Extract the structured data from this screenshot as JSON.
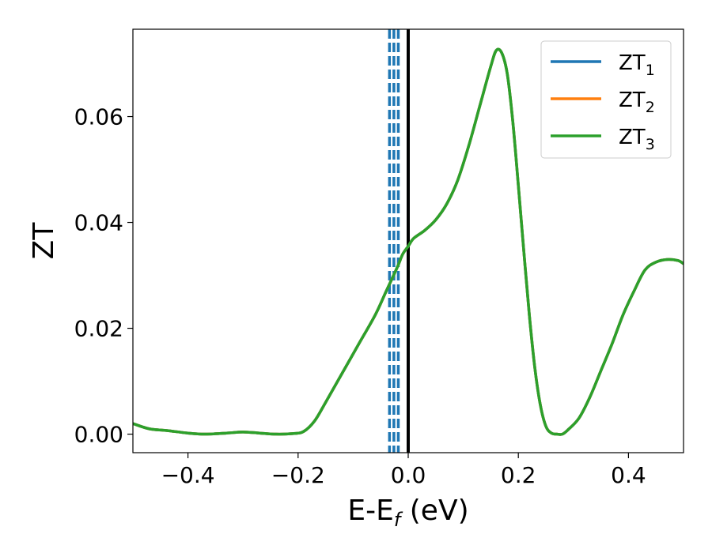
{
  "chart_data": {
    "type": "line",
    "xlabel_main": "E-E",
    "xlabel_sub": "f",
    "xlabel_unit": " (eV)",
    "ylabel": "ZT",
    "xlim": [
      -0.5,
      0.5
    ],
    "ylim": [
      -0.0035,
      0.0765
    ],
    "grid": false,
    "legend_position": "top-right",
    "x_ticks": [
      -0.4,
      -0.2,
      0.0,
      0.2,
      0.4
    ],
    "x_tick_labels": [
      "−0.4",
      "−0.2",
      "0.0",
      "0.2",
      "0.4"
    ],
    "y_ticks": [
      0.0,
      0.02,
      0.04,
      0.06
    ],
    "y_tick_labels": [
      "0.00",
      "0.02",
      "0.04",
      "0.06"
    ],
    "series": [
      {
        "name_main": "ZT",
        "name_sub": "1",
        "color": "#1f77b4"
      },
      {
        "name_main": "ZT",
        "name_sub": "2",
        "color": "#ff7f0e"
      },
      {
        "name_main": "ZT",
        "name_sub": "3",
        "color": "#2ca02c"
      }
    ],
    "curve": {
      "x": [
        -0.5,
        -0.47,
        -0.44,
        -0.4,
        -0.37,
        -0.33,
        -0.3,
        -0.27,
        -0.24,
        -0.21,
        -0.19,
        -0.17,
        -0.15,
        -0.12,
        -0.09,
        -0.06,
        -0.04,
        -0.02,
        -0.01,
        0.0,
        0.01,
        0.03,
        0.05,
        0.07,
        0.09,
        0.11,
        0.13,
        0.15,
        0.16,
        0.17,
        0.18,
        0.19,
        0.2,
        0.21,
        0.22,
        0.23,
        0.24,
        0.25,
        0.26,
        0.27,
        0.28,
        0.29,
        0.31,
        0.33,
        0.35,
        0.37,
        0.39,
        0.41,
        0.43,
        0.45,
        0.47,
        0.49,
        0.5
      ],
      "y": [
        0.002,
        0.001,
        0.0007,
        0.0002,
        0.0,
        0.0002,
        0.0004,
        0.0002,
        0.0,
        0.0001,
        0.0005,
        0.0025,
        0.006,
        0.0115,
        0.017,
        0.0225,
        0.027,
        0.0315,
        0.034,
        0.0355,
        0.037,
        0.0385,
        0.0405,
        0.0435,
        0.048,
        0.0545,
        0.062,
        0.0695,
        0.0725,
        0.072,
        0.068,
        0.059,
        0.047,
        0.0345,
        0.0225,
        0.0125,
        0.0055,
        0.0015,
        0.0002,
        0.0,
        0.0,
        0.0008,
        0.003,
        0.007,
        0.012,
        0.017,
        0.0225,
        0.027,
        0.031,
        0.0325,
        0.033,
        0.0328,
        0.0322
      ]
    },
    "vertical_lines": [
      {
        "x": -0.034,
        "style": "dashed",
        "color": "#1f77b4"
      },
      {
        "x": -0.026,
        "style": "dashed",
        "color": "#1f77b4"
      },
      {
        "x": -0.018,
        "style": "dashed",
        "color": "#1f77b4"
      },
      {
        "x": 0.0,
        "style": "solid",
        "color": "#000000"
      }
    ]
  }
}
